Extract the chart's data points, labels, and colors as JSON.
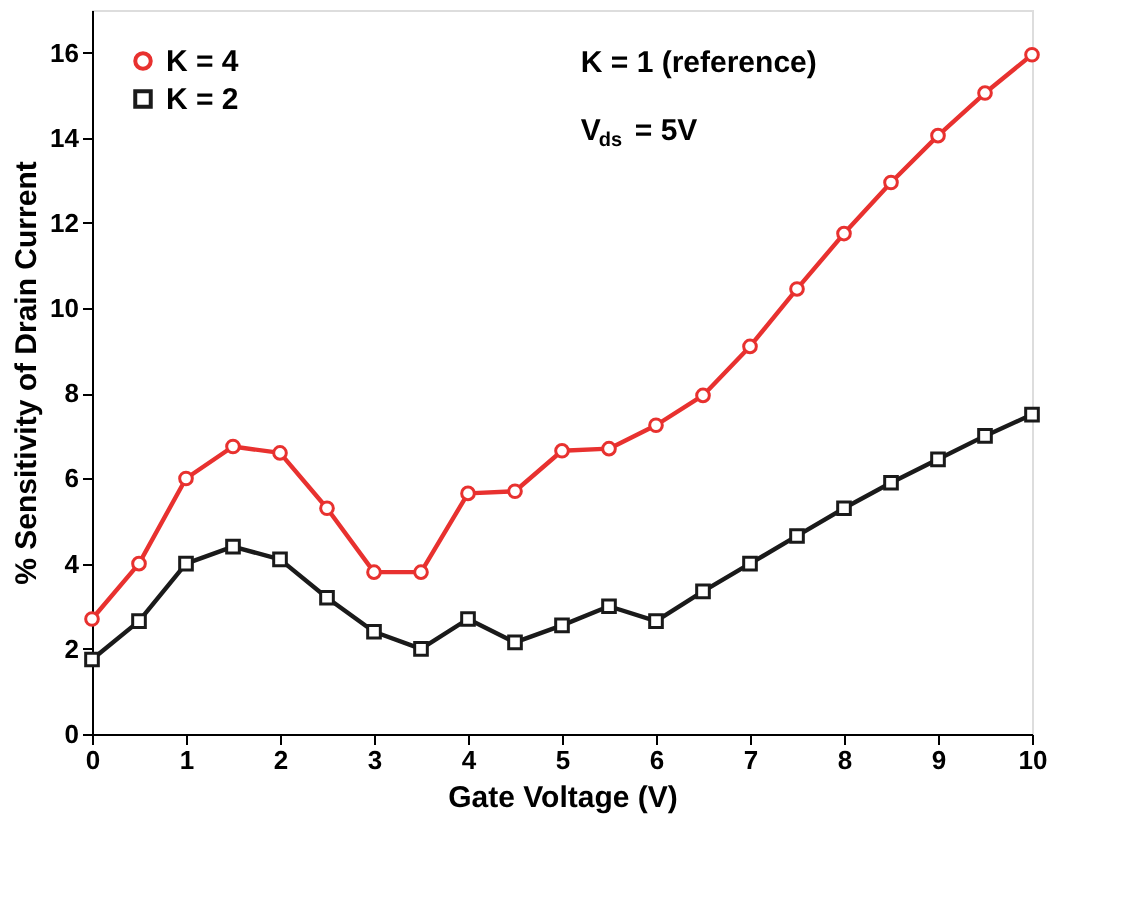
{
  "chart_data": {
    "type": "line",
    "xlabel": "Gate Voltage (V)",
    "ylabel": "% Sensitivity of Drain Current",
    "x": [
      0,
      0.5,
      1,
      1.5,
      2,
      2.5,
      3,
      3.5,
      4,
      4.5,
      5,
      5.5,
      6,
      6.5,
      7,
      7.5,
      8,
      8.5,
      9,
      9.5,
      10
    ],
    "series": [
      {
        "name": "K = 4",
        "color": "#e8312f",
        "marker": "circle",
        "values": [
          2.7,
          4.0,
          6.0,
          6.75,
          6.6,
          5.3,
          3.8,
          3.8,
          5.65,
          5.7,
          6.65,
          6.7,
          7.25,
          7.95,
          9.1,
          10.45,
          11.75,
          12.95,
          14.05,
          15.05,
          15.95
        ]
      },
      {
        "name": "K = 2",
        "color": "#1a1a1a",
        "marker": "square",
        "values": [
          1.75,
          2.65,
          4.0,
          4.4,
          4.1,
          3.2,
          2.4,
          2.0,
          2.7,
          2.15,
          2.55,
          3.0,
          2.65,
          3.35,
          4.0,
          4.65,
          5.3,
          5.9,
          6.45,
          7.0,
          7.5
        ]
      }
    ],
    "xlim": [
      0,
      10
    ],
    "xticks": [
      0,
      1,
      2,
      3,
      4,
      5,
      6,
      7,
      8,
      9,
      10
    ],
    "ylim": [
      0,
      17
    ],
    "yticks": [
      0,
      2,
      4,
      6,
      8,
      10,
      12,
      14,
      16
    ],
    "grid": false,
    "legend": "top left",
    "line_style": "solid",
    "annotations": [
      "K = 1 (reference)",
      "V$_{ds}$ = 5V"
    ]
  }
}
